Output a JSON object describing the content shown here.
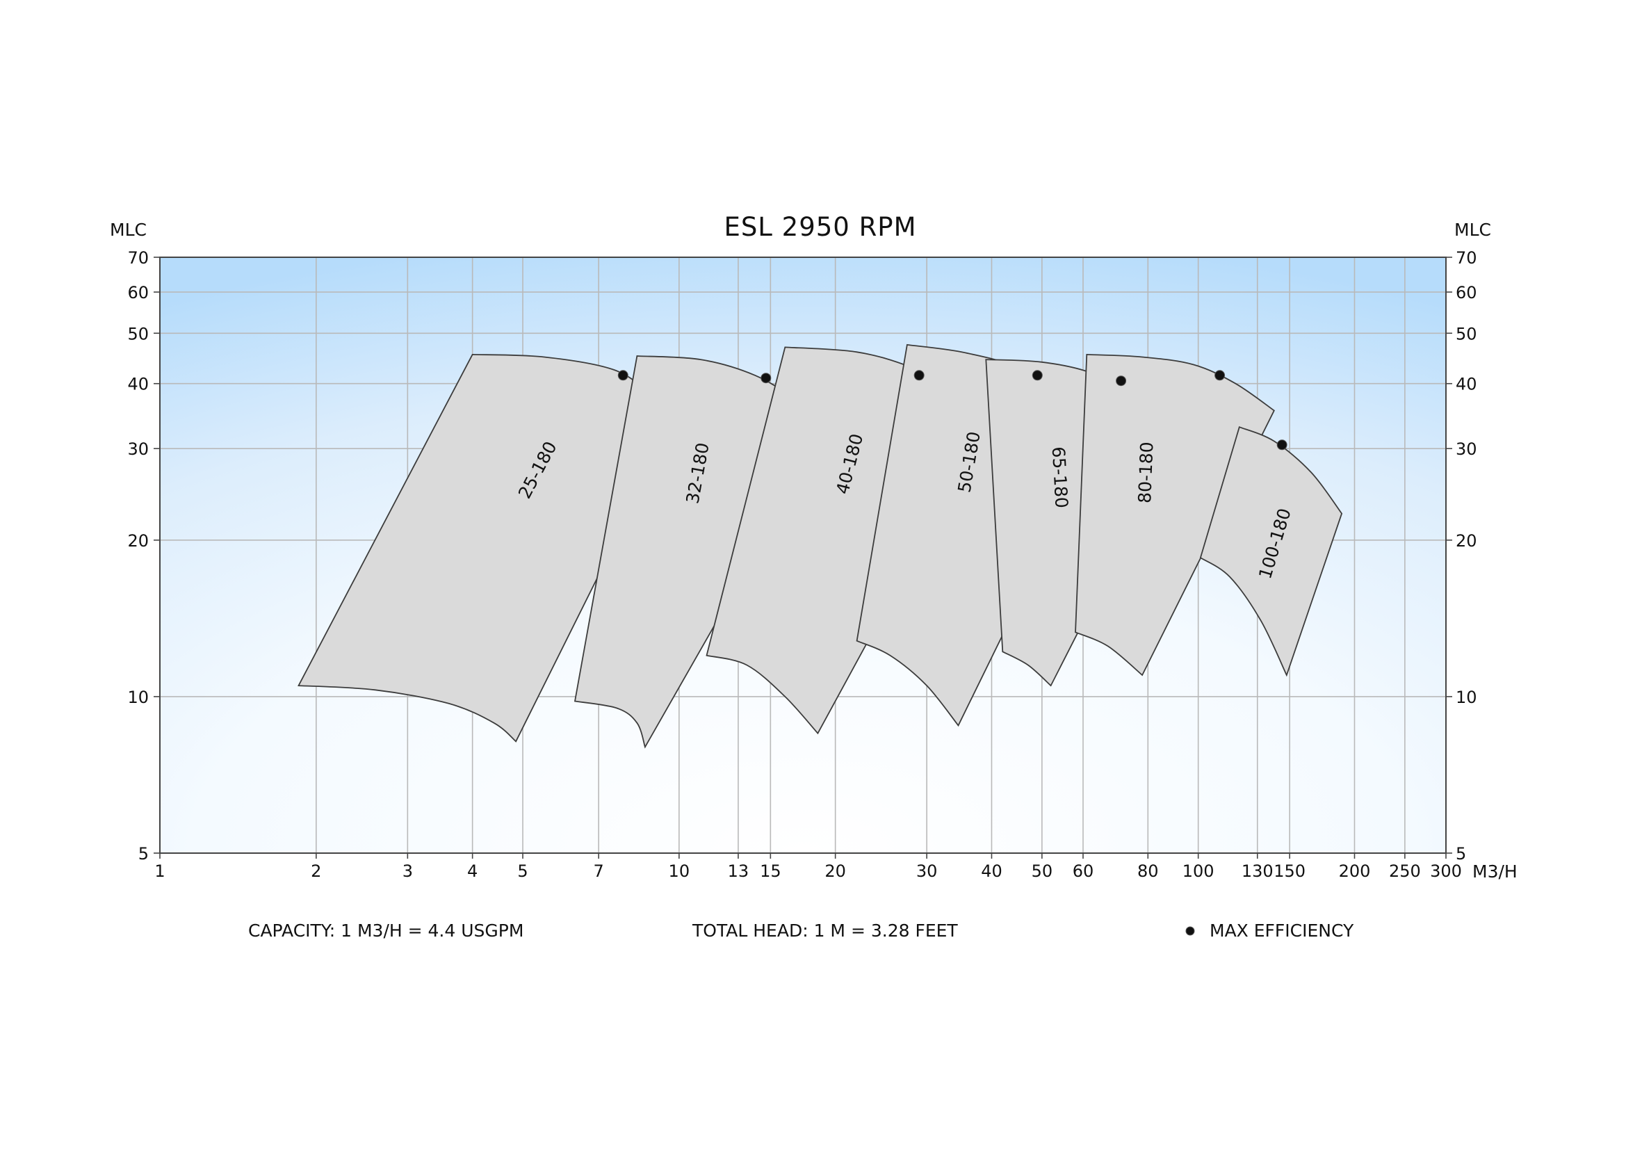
{
  "chart_data": {
    "type": "scatter",
    "title": "ESL 2950 RPM",
    "y_unit_left": "MLC",
    "y_unit_right": "MLC",
    "x_unit": "M3/H",
    "x_scale": "log",
    "y_scale": "log",
    "xlim": [
      1,
      300
    ],
    "ylim": [
      5,
      70
    ],
    "x_ticks": [
      1,
      2,
      3,
      4,
      5,
      7,
      10,
      13,
      15,
      20,
      30,
      40,
      50,
      60,
      80,
      100,
      130,
      150,
      200,
      250,
      300
    ],
    "x_tick_labels": [
      "1",
      "2",
      "3",
      "4",
      "5",
      "7",
      "10",
      "13",
      "15",
      "20",
      "30",
      "40",
      "50",
      "60",
      "80",
      "100",
      "130",
      "150",
      "200",
      "250",
      "300"
    ],
    "y_ticks": [
      5,
      10,
      20,
      30,
      40,
      50,
      60,
      70
    ],
    "y_tick_labels_left": [
      "5",
      "10",
      "20",
      "30",
      "40",
      "50",
      "60",
      "70"
    ],
    "y_tick_labels_right": [
      "5",
      "10",
      "20",
      "30",
      "40",
      "50",
      "60",
      "70"
    ],
    "grid": true,
    "series": [
      {
        "name": "25-180",
        "top": [
          [
            4.0,
            45.5
          ],
          [
            5.5,
            45.0
          ],
          [
            7.5,
            42.5
          ],
          [
            8.9,
            38.0
          ],
          [
            10.0,
            35.0
          ]
        ],
        "bottom": [
          [
            1.85,
            10.5
          ],
          [
            2.6,
            10.3
          ],
          [
            3.6,
            9.7
          ],
          [
            4.4,
            8.9
          ],
          [
            4.85,
            8.2
          ]
        ],
        "bep": [
          7.8,
          41.5
        ]
      },
      {
        "name": "32-180",
        "top": [
          [
            8.3,
            45.2
          ],
          [
            11.0,
            44.5
          ],
          [
            14.0,
            41.5
          ],
          [
            17.0,
            37.0
          ],
          [
            19.5,
            33.5
          ]
        ],
        "bottom": [
          [
            6.3,
            9.8
          ],
          [
            7.6,
            9.5
          ],
          [
            8.3,
            8.9
          ],
          [
            8.6,
            8.0
          ]
        ],
        "bep": [
          14.7,
          41.0
        ]
      },
      {
        "name": "40-180",
        "top": [
          [
            16.0,
            47.0
          ],
          [
            22.0,
            46.0
          ],
          [
            28.0,
            43.0
          ],
          [
            35.0,
            38.5
          ],
          [
            40.0,
            35.0
          ]
        ],
        "bottom": [
          [
            11.3,
            12.0
          ],
          [
            13.5,
            11.5
          ],
          [
            16.0,
            10.0
          ],
          [
            18.5,
            8.5
          ]
        ],
        "bep": [
          29.0,
          41.5
        ]
      },
      {
        "name": "50-180",
        "top": [
          [
            27.5,
            47.5
          ],
          [
            35.0,
            46.0
          ],
          [
            45.0,
            43.0
          ],
          [
            56.0,
            38.0
          ],
          [
            66.0,
            33.0
          ]
        ],
        "bottom": [
          [
            22.0,
            12.8
          ],
          [
            25.5,
            12.0
          ],
          [
            30.0,
            10.5
          ],
          [
            34.5,
            8.8
          ]
        ],
        "bep": [
          49.0,
          41.5
        ]
      },
      {
        "name": "65-180",
        "top": [
          [
            39.0,
            44.5
          ],
          [
            50.0,
            44.0
          ],
          [
            62.0,
            42.0
          ],
          [
            75.0,
            38.0
          ],
          [
            94.0,
            33.5
          ]
        ],
        "bottom": [
          [
            42.0,
            12.2
          ],
          [
            47.0,
            11.5
          ],
          [
            52.0,
            10.5
          ]
        ],
        "bep": [
          71.0,
          40.5
        ]
      },
      {
        "name": "80-180",
        "top": [
          [
            61.0,
            45.5
          ],
          [
            78.0,
            45.0
          ],
          [
            98.0,
            43.5
          ],
          [
            118.0,
            40.0
          ],
          [
            140.0,
            35.5
          ]
        ],
        "bottom": [
          [
            58.0,
            13.3
          ],
          [
            67.0,
            12.5
          ],
          [
            78.0,
            11.0
          ]
        ],
        "bep": [
          110.0,
          41.5
        ]
      },
      {
        "name": "100-180",
        "top": [
          [
            120.0,
            33.0
          ],
          [
            140.0,
            31.0
          ],
          [
            165.0,
            27.0
          ],
          [
            189.0,
            22.5
          ]
        ],
        "bottom": [
          [
            101.0,
            18.5
          ],
          [
            115.0,
            17.0
          ],
          [
            132.0,
            14.0
          ],
          [
            148.0,
            11.0
          ]
        ],
        "bep": [
          145.0,
          30.5
        ]
      }
    ],
    "footnotes": {
      "capacity": "CAPACITY: 1 M3/H = 4.4 USGPM",
      "head": "TOTAL HEAD: 1 M = 3.28 FEET",
      "legend": "MAX EFFICIENCY"
    },
    "colors": {
      "background_edge": "#b6dcfb",
      "background_center": "#ffffff",
      "region_fill": "#dadada",
      "region_stroke": "#3c3c3c",
      "grid": "#b9b9b9",
      "bep_marker": "#111111"
    }
  }
}
